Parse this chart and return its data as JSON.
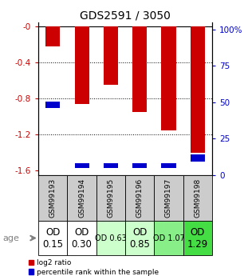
{
  "title": "GDS2591 / 3050",
  "samples": [
    "GSM99193",
    "GSM99194",
    "GSM99195",
    "GSM99196",
    "GSM99197",
    "GSM99198"
  ],
  "log2_ratio": [
    -0.22,
    -0.86,
    -0.65,
    -0.95,
    -1.15,
    -1.4
  ],
  "blue_bottom": [
    -0.9,
    -1.57,
    -1.57,
    -1.57,
    -1.57,
    -1.5
  ],
  "blue_height": [
    0.07,
    0.05,
    0.05,
    0.05,
    0.05,
    0.08
  ],
  "ylim_left": [
    -1.65,
    0.05
  ],
  "ylim_right": [
    0,
    105
  ],
  "yticks_left": [
    0,
    -0.4,
    -0.8,
    -1.2,
    -1.6
  ],
  "yticks_right": [
    0,
    25,
    50,
    75,
    100
  ],
  "ytick_labels_left": [
    "-0",
    "-0.4",
    "-0.8",
    "-1.2",
    "-1.6"
  ],
  "ytick_labels_right": [
    "0",
    "25",
    "50",
    "75",
    "100%"
  ],
  "od_labels": [
    "OD\n0.15",
    "OD\n0.30",
    "OD 0.63",
    "OD\n0.85",
    "OD 1.07",
    "OD\n1.29"
  ],
  "od_bg_colors": [
    "#ffffff",
    "#ffffff",
    "#ccffcc",
    "#ccffcc",
    "#88ee88",
    "#44dd44"
  ],
  "od_font_sizes": [
    8.5,
    8.5,
    7.0,
    8.5,
    7.0,
    8.5
  ],
  "sample_bg_color": "#cccccc",
  "bar_width": 0.5,
  "red_color": "#cc0000",
  "blue_color": "#0000cc",
  "left_color": "#cc0000",
  "right_color": "#0000cc",
  "age_label": "age"
}
